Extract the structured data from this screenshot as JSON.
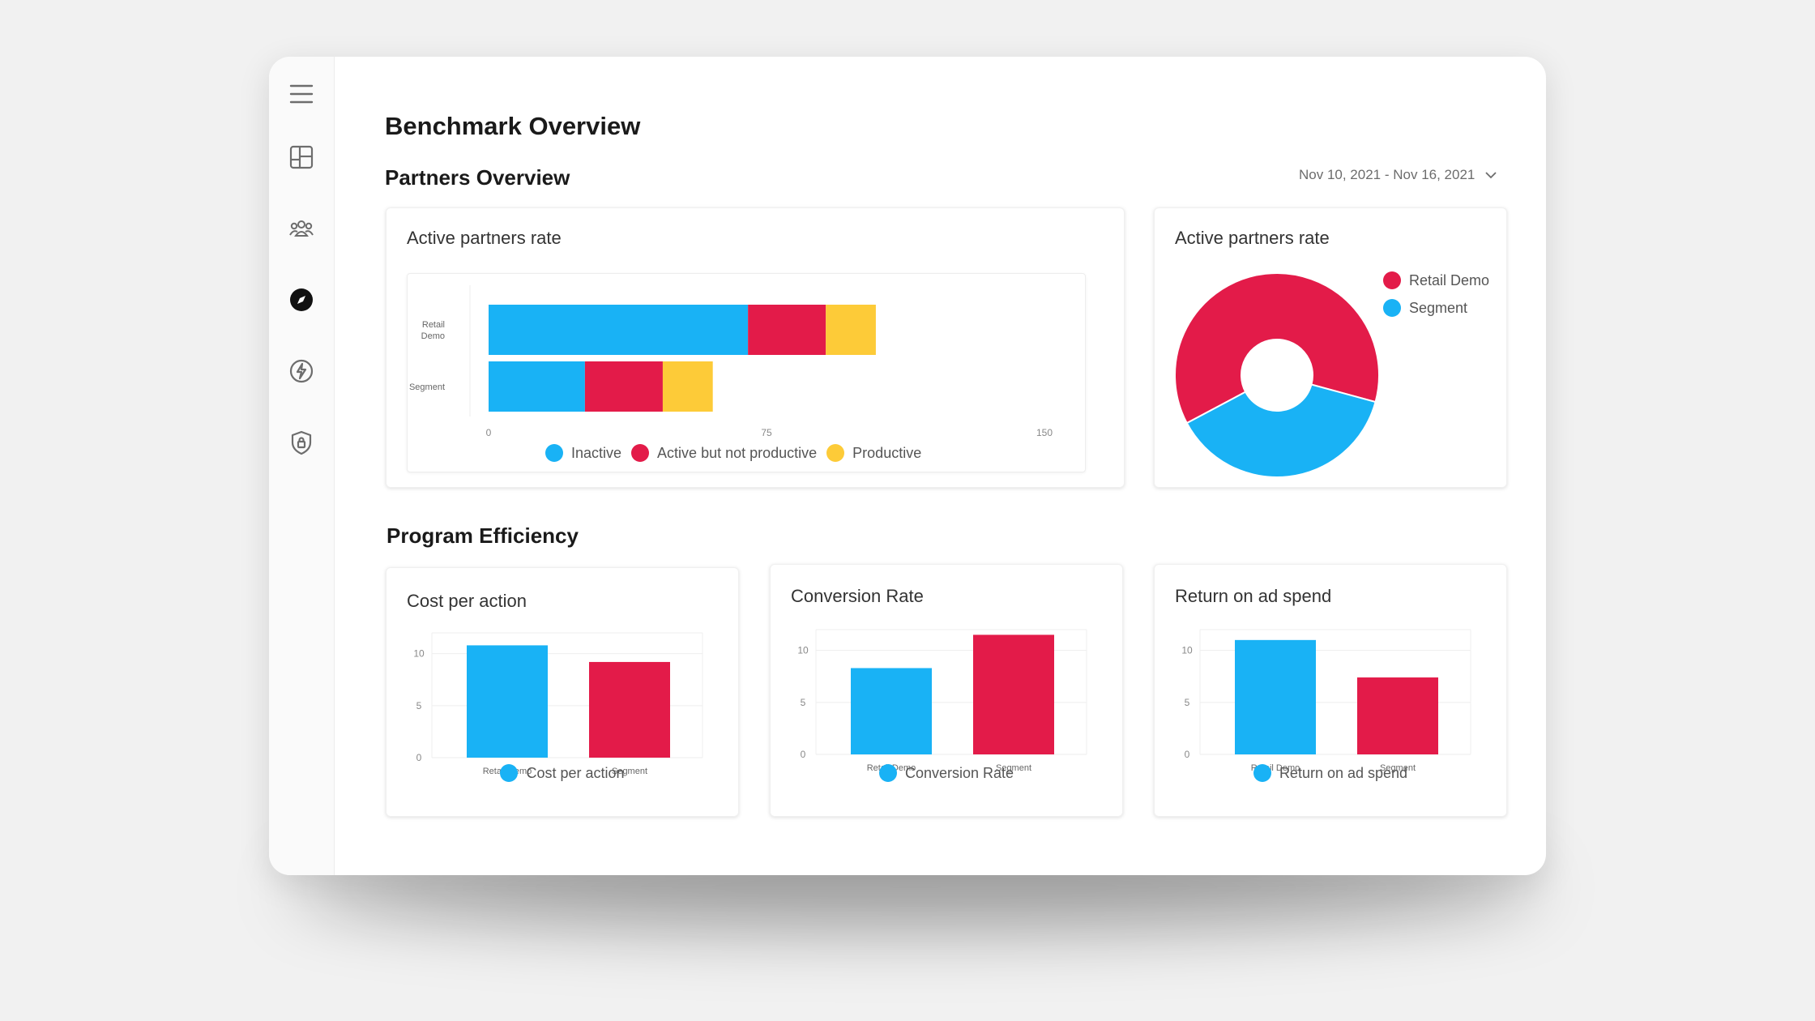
{
  "page": {
    "title": "Benchmark Overview"
  },
  "colors": {
    "blue": "#19b2f5",
    "red": "#e31b49",
    "yellow": "#fdcb38"
  },
  "sidebar": {
    "items": [
      {
        "name": "menu-icon",
        "active": false
      },
      {
        "name": "dashboard-icon",
        "active": false
      },
      {
        "name": "partners-icon",
        "active": false
      },
      {
        "name": "compass-icon",
        "active": true
      },
      {
        "name": "lightning-icon",
        "active": false
      },
      {
        "name": "shield-icon",
        "active": false
      }
    ]
  },
  "partners_overview": {
    "title": "Partners Overview",
    "date_range": "Nov 10, 2021 - Nov 16, 2021"
  },
  "bar_card": {
    "title": "Active partners rate",
    "legend": [
      "Inactive",
      "Active but not productive",
      "Productive"
    ]
  },
  "donut_card": {
    "title": "Active partners rate",
    "legend": [
      "Retail Demo",
      "Segment"
    ]
  },
  "program_efficiency": {
    "title": "Program Efficiency"
  },
  "cost_card": {
    "title": "Cost per action",
    "legend": "Cost per action"
  },
  "conversion_card": {
    "title": "Conversion Rate",
    "legend": "Conversion Rate"
  },
  "roas_card": {
    "title": "Return on ad spend",
    "legend": "Return on ad spend"
  },
  "chart_data": [
    {
      "type": "bar",
      "orientation": "horizontal",
      "stacked": true,
      "title": "Active partners rate",
      "categories": [
        "Retail Demo",
        "Segment"
      ],
      "category_labels": [
        [
          "Retail",
          "Demo"
        ],
        [
          "Segment"
        ]
      ],
      "series": [
        {
          "name": "Inactive",
          "values": [
            70,
            26
          ]
        },
        {
          "name": "Active but not productive",
          "values": [
            21,
            21
          ]
        },
        {
          "name": "Productive",
          "values": [
            13.5,
            13.5
          ]
        }
      ],
      "xlim": [
        0,
        150
      ],
      "xticks": [
        "0",
        "75",
        "150"
      ],
      "legend": "bottom"
    },
    {
      "type": "pie",
      "donut": true,
      "title": "Active partners rate",
      "labels": [
        "Retail Demo",
        "Segment"
      ],
      "values": [
        62,
        38
      ],
      "legend": "right"
    },
    {
      "type": "bar",
      "title": "Cost per action",
      "categories": [
        "Retail Demo",
        "Segment"
      ],
      "values": [
        10.8,
        9.2
      ],
      "ylim": [
        0,
        12
      ],
      "yticks": [
        "0",
        "5",
        "10"
      ],
      "legend": "bottom"
    },
    {
      "type": "bar",
      "title": "Conversion Rate",
      "categories": [
        "Retail Demo",
        "Segment"
      ],
      "values": [
        8.3,
        11.5
      ],
      "ylim": [
        0,
        12
      ],
      "yticks": [
        "0",
        "5",
        "10"
      ],
      "legend": "bottom"
    },
    {
      "type": "bar",
      "title": "Return on ad spend",
      "categories": [
        "Retail Demo",
        "Segment"
      ],
      "values": [
        11,
        7.4
      ],
      "ylim": [
        0,
        12
      ],
      "yticks": [
        "0",
        "5",
        "10"
      ],
      "legend": "bottom"
    }
  ]
}
